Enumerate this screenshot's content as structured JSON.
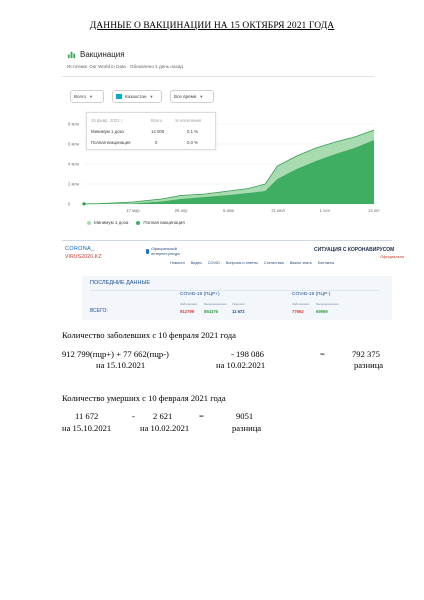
{
  "document": {
    "title": "ДАННЫЕ О ВАКЦИНАЦИИ НА 15 ОКТЯБРЯ 2021 ГОДА"
  },
  "vaccination_card": {
    "title": "Вакцинация",
    "source": "Источник: Our World in Data · Обновлено 1 день назад",
    "filters": {
      "all": "Всего",
      "country": "Казахстан",
      "period": "Все время"
    },
    "tooltip": {
      "date": "15 февр. 2021 г.",
      "col_total": "Всего",
      "col_percent": "% населения",
      "rows": [
        {
          "label": "Минимум 1 доза",
          "value": "14 000",
          "percent": "0,1 %"
        },
        {
          "label": "Полная вакцинация",
          "value": "0",
          "percent": "0,0 %"
        }
      ]
    },
    "legend": {
      "series1": "Минимум 1 доза",
      "series2": "Полная вакцинация"
    },
    "colors": {
      "at_least_one_dose": "#a8dbb0",
      "fully_vaccinated": "#3fae62",
      "line": "#2e9e4f",
      "grid": "#e8eaed",
      "axis_text": "#70757a"
    }
  },
  "chart_data": {
    "type": "area",
    "x_ticks": [
      "17 мар",
      "26 апр",
      "5 июн",
      "21 июл",
      "1 сен",
      "13 окт"
    ],
    "y_ticks": [
      "8 млн",
      "6 млн",
      "4 млн",
      "2 млн",
      "0"
    ],
    "ylim": [
      0,
      8000000
    ],
    "xlabel": "",
    "ylabel": "",
    "grid": true,
    "series": [
      {
        "name": "Минимум 1 доза",
        "x_index": [
          0,
          0.3,
          1,
          1.6,
          2,
          2.5,
          3,
          3.4,
          3.75,
          4,
          4.4,
          4.8,
          5.2,
          5.6,
          6
        ],
        "values": [
          14000,
          30000,
          200000,
          500000,
          850000,
          1000000,
          1300000,
          1550000,
          2000000,
          3800000,
          4800000,
          5600000,
          6200000,
          6700000,
          7400000
        ]
      },
      {
        "name": "Полная вакцинация",
        "x_index": [
          0,
          0.3,
          1,
          1.6,
          2,
          2.5,
          3,
          3.4,
          3.75,
          4,
          4.4,
          4.8,
          5.2,
          5.6,
          6
        ],
        "values": [
          0,
          5000,
          50000,
          250000,
          500000,
          700000,
          900000,
          1100000,
          1300000,
          2500000,
          3500000,
          4300000,
          5000000,
          5600000,
          6400000
        ]
      }
    ]
  },
  "site": {
    "logo_line1": "CORONA_",
    "logo_line2": "VIRUS2020.KZ",
    "brand": "Официальный интернет-ресурс",
    "headline": "СИТУАЦИЯ С КОРОНАВИРУСОМ",
    "official": "Официально",
    "nav": [
      "Новости",
      "Видео",
      "COVID",
      "Вопросы и ответы",
      "Статистика",
      "Важно знать",
      "Контакты"
    ],
    "panel": {
      "title": "ПОСЛЕДНИЕ ДАННЫЕ",
      "group1": "COVID-19 (ПЦР+)",
      "group2": "COVID-19 (ПЦР-)",
      "sub_sick": "Заболевших",
      "sub_recovered": "Выздоровевших",
      "sub_dead": "Умерших",
      "total_label": "ВСЕГО:",
      "g1_sick": "912799",
      "g1_recovered": "854376",
      "g1_dead": "11 672",
      "g2_sick": "77662",
      "g2_recovered": "69999"
    }
  },
  "cases_block": {
    "heading": "Количество заболевших с 10 февраля 2021 года",
    "expr_left": "912 799(пцр+) + 77 662(пцр-)",
    "minus_value": "- 198 086",
    "equals": "=",
    "result": "792 375",
    "date_left": "на 15.10.2021",
    "date_right": "на 10.02.2021",
    "result_label": "разница"
  },
  "deaths_block": {
    "heading": "Количество умерших с 10 февраля 2021 года",
    "value_now": "11 672",
    "minus": "-",
    "value_then": "2 621",
    "equals": "=",
    "result": "9051",
    "date_now": "на 15.10.2021",
    "date_then": "на 10.02.2021",
    "result_label": "разница"
  }
}
